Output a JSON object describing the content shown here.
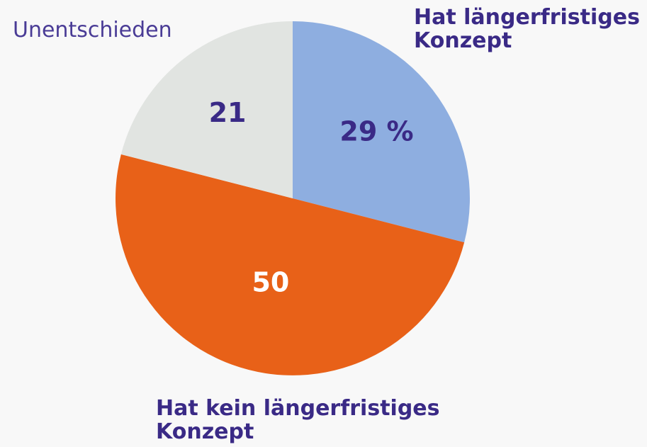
{
  "chart_data": {
    "type": "pie",
    "categories": [
      "Hat längerfristiges Konzept",
      "Hat kein längerfristiges Konzept",
      "Unentschieden"
    ],
    "values": [
      29,
      50,
      21
    ],
    "value_labels": [
      "29 %",
      "50",
      "21"
    ],
    "colors": [
      "#8eaee0",
      "#e86118",
      "#e1e4e1"
    ],
    "value_label_colors": [
      "#3a2a86",
      "#ffffff",
      "#3a2a86"
    ],
    "start_angle": 0,
    "direction": "clockwise"
  }
}
